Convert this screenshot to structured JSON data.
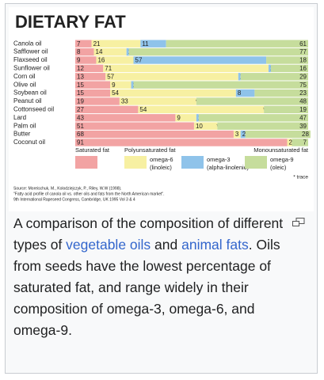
{
  "chart_data": {
    "type": "stacked-barh",
    "title": "DIETARY FAT",
    "categories": [
      "Canola oil",
      "Safflower oil",
      "Flaxseed oil",
      "Sunflower oil",
      "Corn oil",
      "Olive oil",
      "Soybean oil",
      "Peanut oil",
      "Cottonseed oil",
      "Lard",
      "Palm oil",
      "Butter",
      "Coconut oil"
    ],
    "xlim": [
      0,
      100
    ],
    "series": [
      {
        "name": "Saturated fat",
        "color": "#f2a3a3",
        "values": [
          7,
          8,
          9,
          12,
          13,
          15,
          15,
          19,
          27,
          43,
          51,
          68,
          91
        ]
      },
      {
        "name": "omega-6",
        "sublabel": "(linoleic)",
        "color": "#f7f0a2",
        "values": [
          21,
          14,
          16,
          71,
          57,
          9,
          54,
          33,
          54,
          9,
          10,
          3,
          2
        ]
      },
      {
        "name": "omega-3",
        "sublabel": "(alpha-linolenic)",
        "color": "#8fc3ea",
        "values": [
          11,
          1,
          57,
          1,
          1,
          1,
          8,
          null,
          null,
          1,
          null,
          2,
          null
        ],
        "value_labels": [
          null,
          null,
          null,
          null,
          null,
          null,
          null,
          "*",
          "*",
          null,
          "*",
          null,
          null
        ]
      },
      {
        "name": "omega-9",
        "sublabel": "(oleic)",
        "color": "#c6dd9c",
        "values": [
          61,
          77,
          18,
          16,
          29,
          75,
          23,
          48,
          19,
          47,
          39,
          28,
          7
        ]
      }
    ],
    "legend_groups": [
      "Polyunsaturated fat",
      "Monounsaturated fat"
    ],
    "trace_note": "* trace",
    "source": [
      "Source: Moreischuk, M., Kolodziejczyk, P., Riley, W.W (1998).",
      "\"Fatty acid profile of canola oil vs. other oils and fats from the North American market\".",
      "9th International Rapeseed Congress, Cambridge, UK 1995 Vol 3 & 4"
    ]
  },
  "caption": {
    "text_1": "A comparison of the composition of different types of ",
    "link_1": "vegetable oils",
    "text_2": " and ",
    "link_2": "animal fats",
    "text_3": ". Oils from seeds have the lowest percentage of saturated fat, and range widely in their composition of omega-3, omega-6, and omega-9."
  }
}
